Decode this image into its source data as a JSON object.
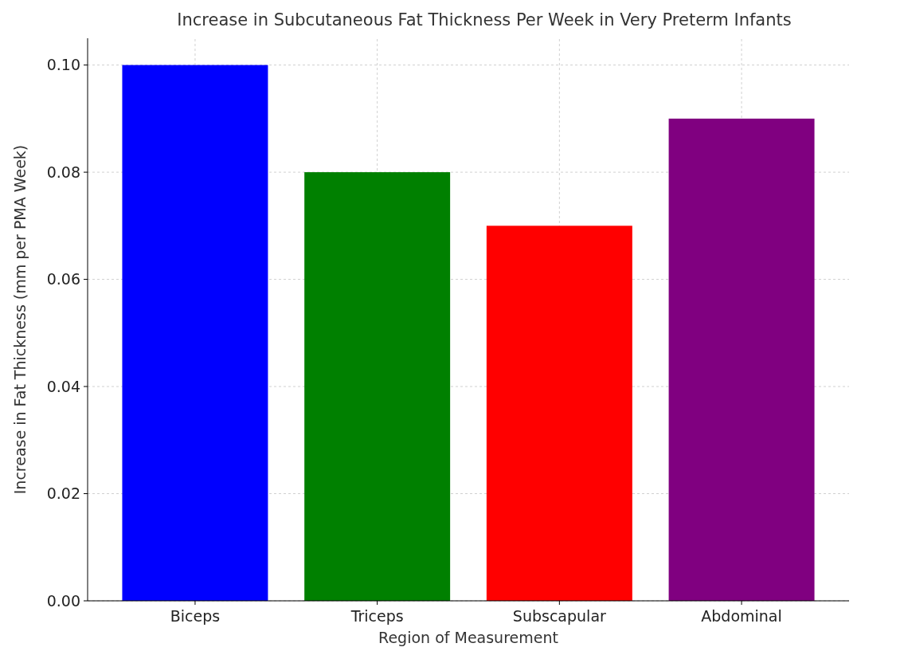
{
  "chart_data": {
    "type": "bar",
    "title": "Increase in Subcutaneous Fat Thickness Per Week in Very Preterm Infants",
    "xlabel": "Region of Measurement",
    "ylabel": "Increase in Fat Thickness (mm per PMA Week)",
    "categories": [
      "Biceps",
      "Triceps",
      "Subscapular",
      "Abdominal"
    ],
    "values": [
      0.1,
      0.08,
      0.07,
      0.09
    ],
    "colors": [
      "#0000ff",
      "#008000",
      "#ff0000",
      "#800080"
    ],
    "ylim": [
      0,
      0.105
    ],
    "yticks": [
      {
        "value": 0,
        "label": "0.00"
      },
      {
        "value": 0.02,
        "label": "0.02"
      },
      {
        "value": 0.04,
        "label": "0.04"
      },
      {
        "value": 0.06,
        "label": "0.06"
      },
      {
        "value": 0.08,
        "label": "0.08"
      },
      {
        "value": 0.1,
        "label": "0.10"
      }
    ],
    "grid": true
  }
}
